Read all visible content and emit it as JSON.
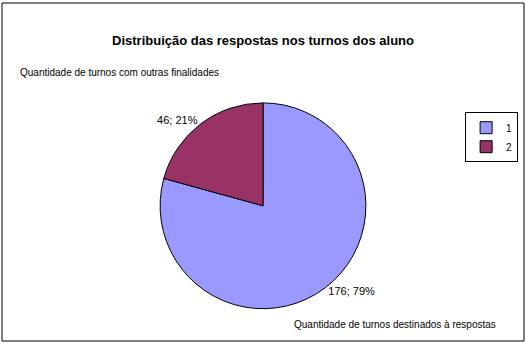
{
  "chart_data": {
    "type": "pie",
    "title": "Distribuição das respostas nos turnos dos aluno",
    "categories": [
      "1",
      "2"
    ],
    "values": [
      176,
      46
    ],
    "value_labels": [
      "176; 79%",
      "46; 21%"
    ],
    "colors": [
      "#9999ff",
      "#993366"
    ],
    "annotations": [
      "Quantidade de turnos com outras finalidades",
      "Quantidade de turnos destinados à respostas"
    ],
    "legend": "right",
    "data_labels": true
  }
}
